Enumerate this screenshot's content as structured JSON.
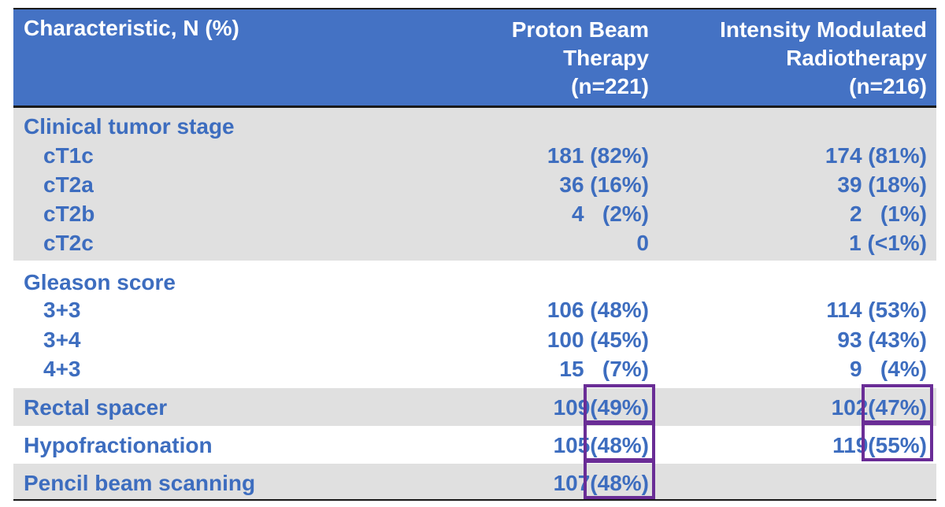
{
  "header": {
    "characteristic": "Characteristic, N (%)",
    "col1": [
      "Proton Beam",
      "Therapy",
      "(n=221)"
    ],
    "col2": [
      "Intensity Modulated",
      "Radiotherapy",
      "(n=216)"
    ]
  },
  "sections": {
    "stage": {
      "title": "Clinical tumor stage",
      "rows": [
        {
          "label": "cT1c",
          "v1": "181 (82%)",
          "v2": "174 (81%)"
        },
        {
          "label": "cT2a",
          "v1": "36 (16%)",
          "v2": "39 (18%)"
        },
        {
          "label": "cT2b",
          "v1": "4   (2%)",
          "v2": "2   (1%)"
        },
        {
          "label": "cT2c",
          "v1": "0",
          "v2": "1 (<1%)"
        }
      ]
    },
    "gleason": {
      "title": "Gleason score",
      "rows": [
        {
          "label": "3+3",
          "v1": "106 (48%)",
          "v2": "114 (53%)"
        },
        {
          "label": "3+4",
          "v1": "100 (45%)",
          "v2": "93 (43%)"
        },
        {
          "label": "4+3",
          "v1": "15   (7%)",
          "v2": "9   (4%)"
        }
      ]
    },
    "spacer": {
      "label": "Rectal spacer",
      "v1n": "109",
      "v1p": "(49%)",
      "v2n": "102",
      "v2p": "(47%)"
    },
    "hypo": {
      "label": "Hypofractionation",
      "v1n": "105",
      "v1p": "(48%)",
      "v2n": "119",
      "v2p": "(55%)"
    },
    "pencil": {
      "label": "Pencil beam scanning",
      "v1n": "107",
      "v1p": "(48%)"
    }
  },
  "colors": {
    "header_bg": "#4472c4",
    "text_blue": "#3d6dbf",
    "gray_band": "#e0e0e0",
    "highlight_box": "#6a2d96"
  }
}
